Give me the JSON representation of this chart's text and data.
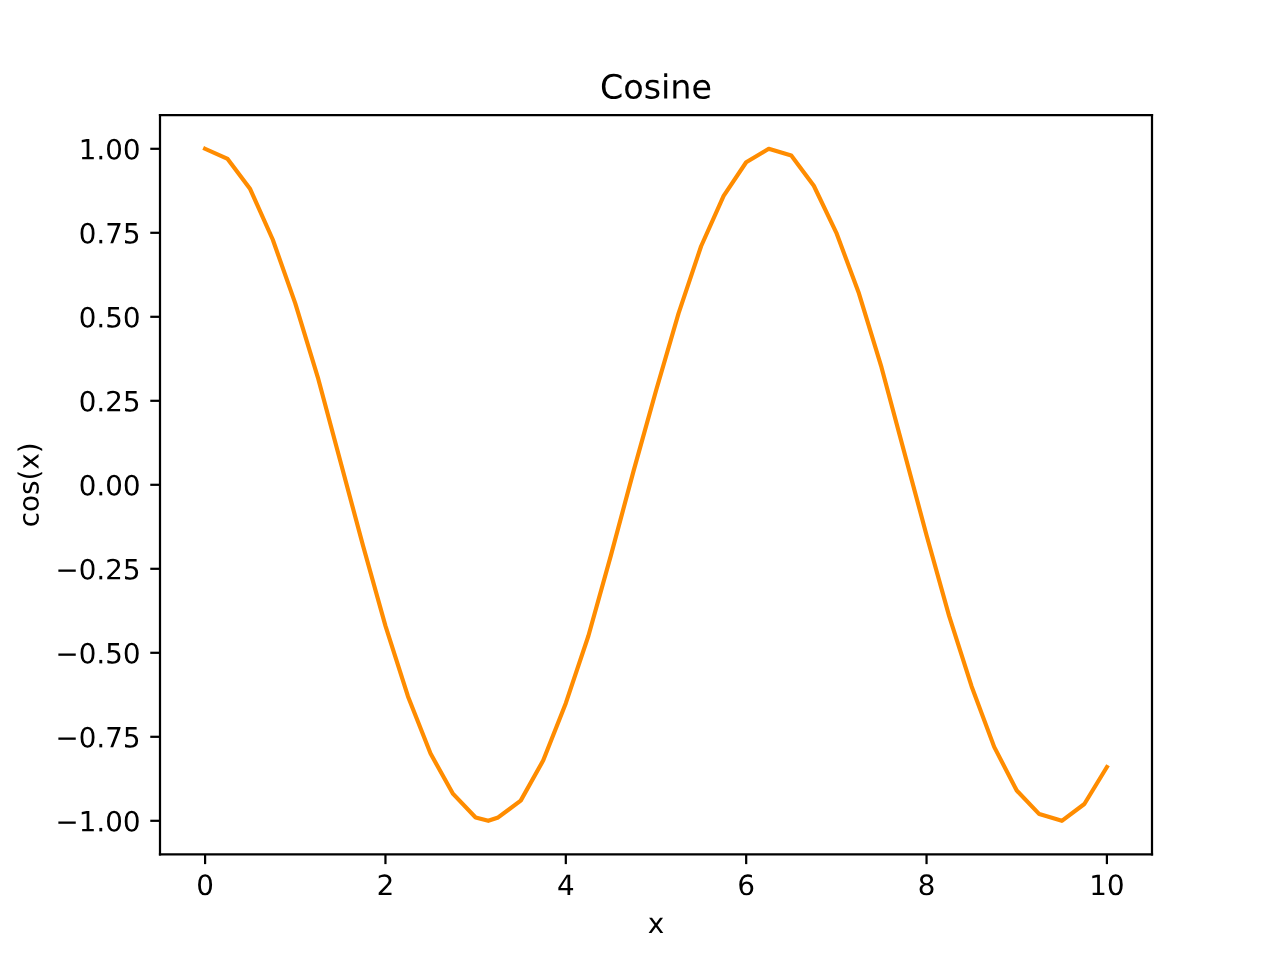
{
  "chart_data": {
    "type": "line",
    "title": "Cosine",
    "xlabel": "x",
    "ylabel": "cos(x)",
    "x": [
      0,
      0.25,
      0.5,
      0.75,
      1,
      1.25,
      1.5,
      1.75,
      2,
      2.25,
      2.5,
      2.75,
      3,
      3.14,
      3.25,
      3.5,
      3.75,
      4,
      4.25,
      4.5,
      4.75,
      5,
      5.25,
      5.5,
      5.75,
      6,
      6.25,
      6.5,
      6.75,
      7,
      7.25,
      7.5,
      7.75,
      8,
      8.25,
      8.5,
      8.75,
      9,
      9.25,
      9.5,
      9.75,
      10
    ],
    "series": [
      {
        "color": "#ff8c00",
        "values": [
          1.0,
          0.97,
          0.88,
          0.73,
          0.54,
          0.32,
          0.07,
          -0.18,
          -0.42,
          -0.63,
          -0.8,
          -0.92,
          -0.99,
          -1.0,
          -0.99,
          -0.94,
          -0.82,
          -0.65,
          -0.45,
          -0.21,
          0.04,
          0.28,
          0.51,
          0.71,
          0.86,
          0.96,
          1.0,
          0.98,
          0.89,
          0.75,
          0.57,
          0.35,
          0.1,
          -0.15,
          -0.39,
          -0.6,
          -0.78,
          -0.91,
          -0.98,
          -1.0,
          -0.95,
          -0.84
        ]
      }
    ],
    "xlim": [
      -0.5,
      10.5
    ],
    "ylim": [
      -1.1,
      1.1
    ],
    "xticks": [
      0,
      2,
      4,
      6,
      8,
      10
    ],
    "yticks": [
      {
        "value": -1,
        "label": "−1.00"
      },
      {
        "value": -0.75,
        "label": "−0.75"
      },
      {
        "value": -0.5,
        "label": "−0.50"
      },
      {
        "value": -0.25,
        "label": "−0.25"
      },
      {
        "value": 0,
        "label": "0.00"
      },
      {
        "value": 0.25,
        "label": "0.25"
      },
      {
        "value": 0.5,
        "label": "0.50"
      },
      {
        "value": 0.75,
        "label": "0.75"
      },
      {
        "value": 1,
        "label": "1.00"
      }
    ],
    "grid": false,
    "legend": false
  }
}
